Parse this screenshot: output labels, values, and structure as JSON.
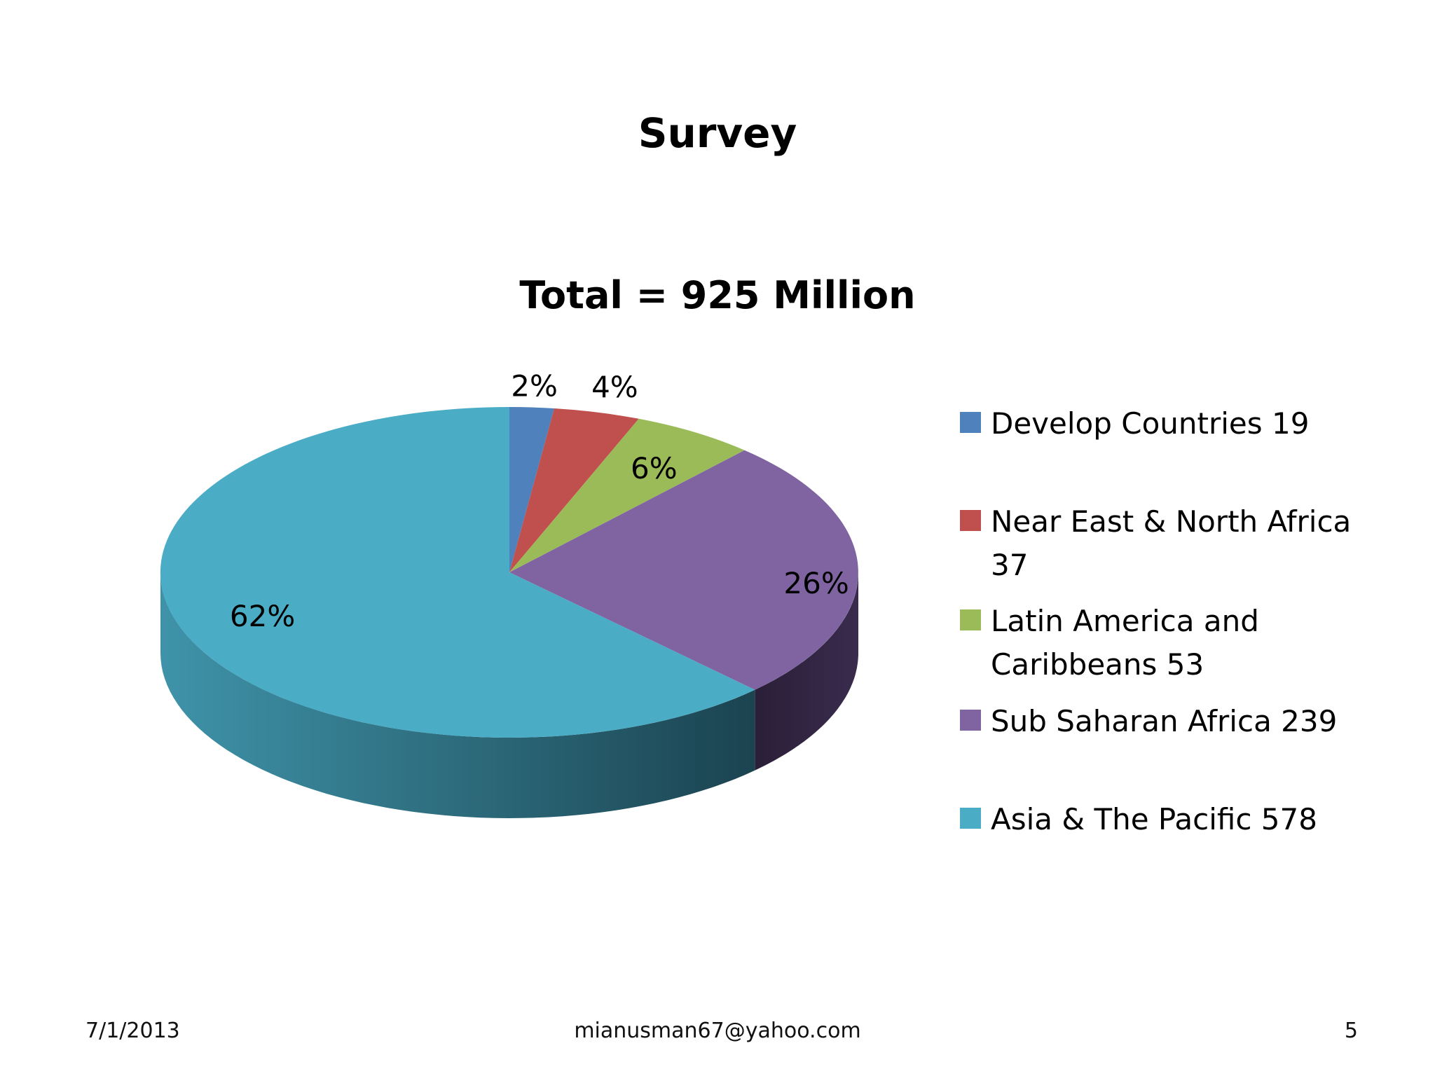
{
  "slide": {
    "title": "Survey",
    "footer": {
      "date": "7/1/2013",
      "email": "mianusman67@yahoo.com",
      "page": "5"
    }
  },
  "chart_data": {
    "type": "pie",
    "title": "Total = 925 Million",
    "three_d": true,
    "legend_position": "right",
    "series": [
      {
        "name": "Develop Countries 19",
        "value": 19,
        "percent_label": "2%",
        "color": "#4F81BD"
      },
      {
        "name": "Near East & North Africa 37",
        "value": 37,
        "percent_label": "4%",
        "color": "#C0504D"
      },
      {
        "name": "Latin America and Caribbeans 53",
        "value": 53,
        "percent_label": "6%",
        "color": "#9BBB59"
      },
      {
        "name": "Sub Saharan Africa 239",
        "value": 239,
        "percent_label": "26%",
        "color": "#8064A2"
      },
      {
        "name": "Asia & The Pacific 578",
        "value": 578,
        "percent_label": "62%",
        "color": "#4BACC6"
      }
    ]
  }
}
